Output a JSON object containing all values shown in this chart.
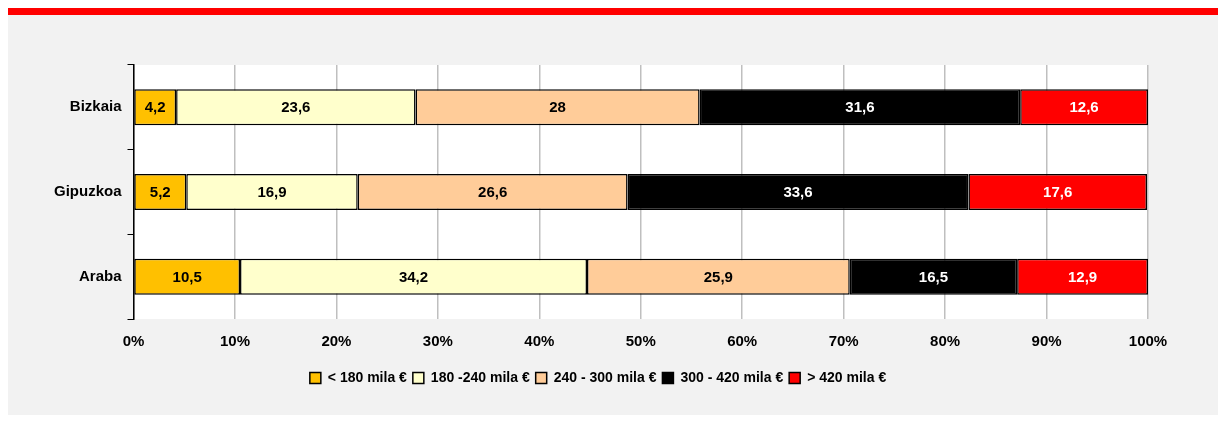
{
  "chart_data": {
    "type": "bar",
    "orientation": "horizontal",
    "stacked": true,
    "categories": [
      "Bizkaia",
      "Gipuzkoa",
      "Araba"
    ],
    "series": [
      {
        "name": "< 180 mila €",
        "color": "#ffc000",
        "values": [
          4.2,
          5.2,
          10.5
        ],
        "value_labels": [
          "4,2",
          "5,2",
          "10,5"
        ]
      },
      {
        "name": "180 -240 mila €",
        "color": "#ffffcc",
        "values": [
          23.6,
          16.9,
          34.2
        ],
        "value_labels": [
          "23,6",
          "16,9",
          "34,2"
        ]
      },
      {
        "name": "240 - 300 mila €",
        "color": "#ffcc99",
        "values": [
          28,
          26.6,
          25.9
        ],
        "value_labels": [
          "28",
          "26,6",
          "25,9"
        ]
      },
      {
        "name": "300 - 420 mila €",
        "color": "#000000",
        "values": [
          31.6,
          33.6,
          16.5
        ],
        "value_labels": [
          "31,6",
          "33,6",
          "16,5"
        ]
      },
      {
        "name": "> 420 mila €",
        "color": "#ff0000",
        "values": [
          12.6,
          17.6,
          12.9
        ],
        "value_labels": [
          "12,6",
          "17,6",
          "12,9"
        ]
      }
    ],
    "xlim": [
      0,
      100
    ],
    "xticks": [
      {
        "value": 0,
        "label": "0%"
      },
      {
        "value": 10,
        "label": "10%"
      },
      {
        "value": 20,
        "label": "20%"
      },
      {
        "value": 30,
        "label": "30%"
      },
      {
        "value": 40,
        "label": "40%"
      },
      {
        "value": 50,
        "label": "50%"
      },
      {
        "value": 60,
        "label": "60%"
      },
      {
        "value": 70,
        "label": "70%"
      },
      {
        "value": 80,
        "label": "80%"
      },
      {
        "value": 90,
        "label": "90%"
      },
      {
        "value": 100,
        "label": "100%"
      }
    ],
    "grid": "x",
    "legend": "bottom"
  }
}
